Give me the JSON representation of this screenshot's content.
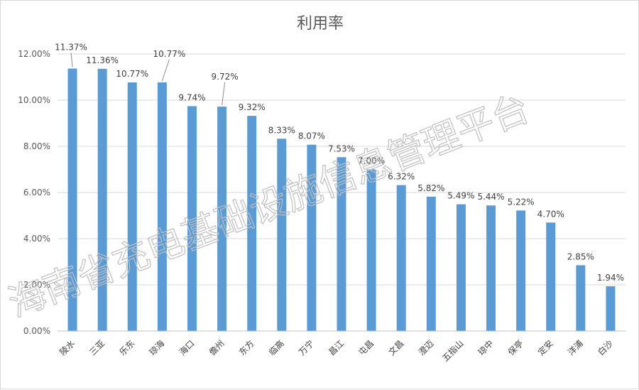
{
  "chart_data": {
    "type": "bar",
    "title": "利用率",
    "xlabel": "",
    "ylabel": "",
    "ylim": [
      0,
      12
    ],
    "yticks": [
      "0.00%",
      "2.00%",
      "4.00%",
      "6.00%",
      "8.00%",
      "10.00%",
      "12.00%"
    ],
    "grid": true,
    "legend": "none",
    "bar_color": "#5b9bd5",
    "categories": [
      "陵水",
      "三亚",
      "乐东",
      "琼海",
      "海口",
      "儋州",
      "东方",
      "临高",
      "万宁",
      "昌江",
      "屯昌",
      "文昌",
      "澄迈",
      "五指山",
      "琼中",
      "保亭",
      "定安",
      "洋浦",
      "白沙"
    ],
    "values": [
      11.37,
      11.36,
      10.77,
      10.77,
      9.74,
      9.72,
      9.32,
      8.33,
      8.07,
      7.53,
      7.0,
      6.32,
      5.82,
      5.49,
      5.44,
      5.22,
      4.7,
      2.85,
      1.94
    ],
    "data_labels": [
      "11.37%",
      "11.36%",
      "10.77%",
      "10.77%",
      "9.74%",
      "9.72%",
      "9.32%",
      "8.33%",
      "8.07%",
      "7.53%",
      "7.00%",
      "6.32%",
      "5.82%",
      "5.49%",
      "5.44%",
      "5.22%",
      "4.70%",
      "2.85%",
      "1.94%"
    ]
  },
  "watermark": "海南省充电基础设施信息管理平台"
}
